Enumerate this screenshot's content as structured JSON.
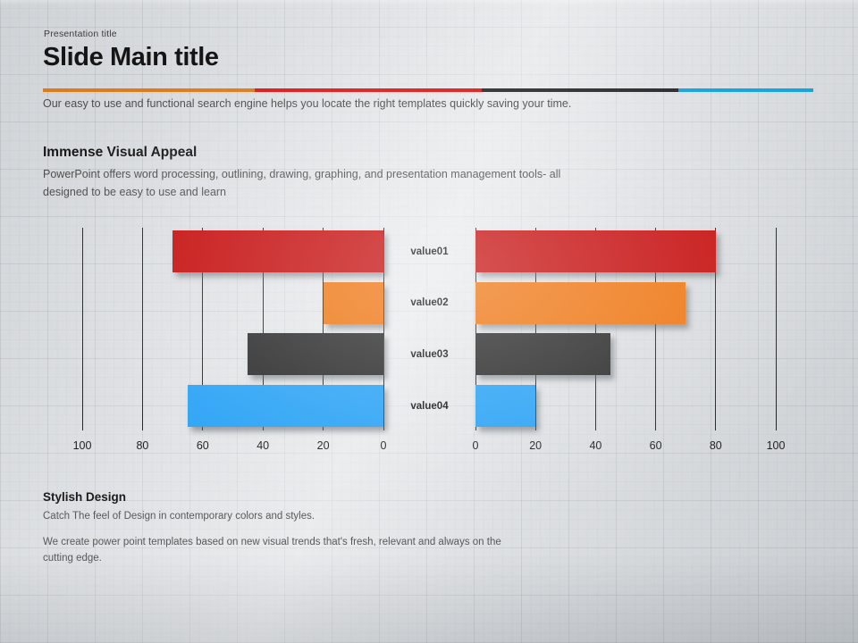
{
  "slide": {
    "kicker": "Presentation title",
    "title": "Slide Main title",
    "subtitle": "Our easy to use and functional search engine helps you locate the right templates quickly saving your time.",
    "divider_colors": [
      "#df7b1c",
      "#e11717",
      "#2b2b2b",
      "#18a4df"
    ],
    "divider_widths_pct": [
      27.5,
      29.5,
      25.5,
      17.5
    ]
  },
  "sections": {
    "appeal": {
      "heading": "Immense Visual Appeal",
      "body": "PowerPoint offers word processing, outlining, drawing, graphing, and presentation management tools- all designed to be easy to use and learn"
    },
    "stylish": {
      "heading": "Stylish Design",
      "line1": "Catch The feel of Design in contemporary colors and styles.",
      "line2": "We create power point templates based on new visual trends that's fresh, relevant and always on the cutting edge."
    }
  },
  "chart_data": {
    "type": "bar",
    "layout": "butterfly-horizontal",
    "categories": [
      "value01",
      "value02",
      "value03",
      "value04"
    ],
    "series": [
      {
        "name": "left",
        "values": [
          70,
          20,
          45,
          65
        ]
      },
      {
        "name": "right",
        "values": [
          80,
          70,
          45,
          20
        ]
      }
    ],
    "bar_colors": [
      "#c50d0d",
      "#ee7613",
      "#2b2b2b",
      "#2ba3f5"
    ],
    "left_axis_ticks": [
      "100",
      "80",
      "60",
      "40",
      "20",
      "0"
    ],
    "right_axis_ticks": [
      "0",
      "20",
      "40",
      "60",
      "80",
      "100"
    ],
    "xlim": [
      0,
      100
    ],
    "grid": true,
    "legend": "none"
  }
}
